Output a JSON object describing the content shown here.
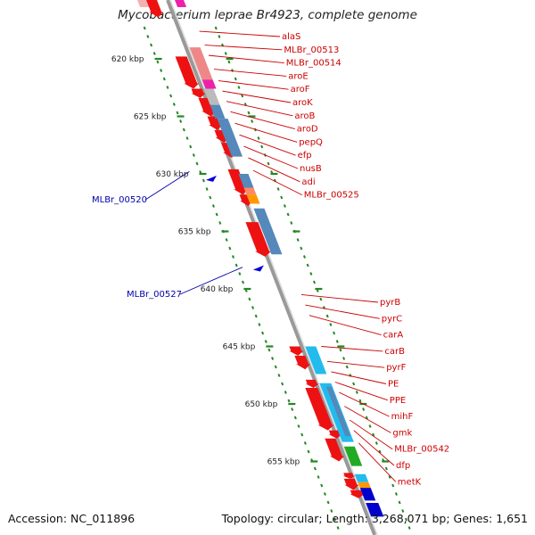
{
  "header": {
    "title": "Mycobacterium leprae Br4923, complete genome"
  },
  "footer": {
    "accession": "Accession: NC_011896",
    "summary": "Topology: circular; Length: 3,268,071 bp; Genes: 1,651"
  },
  "scale": {
    "ticks": [
      {
        "label": "620 kbp",
        "pos": 620
      },
      {
        "label": "625 kbp",
        "pos": 625
      },
      {
        "label": "630 kbp",
        "pos": 630
      },
      {
        "label": "635 kbp",
        "pos": 635
      },
      {
        "label": "640 kbp",
        "pos": 640
      },
      {
        "label": "645 kbp",
        "pos": 645
      },
      {
        "label": "650 kbp",
        "pos": 650
      },
      {
        "label": "655 kbp",
        "pos": 655
      }
    ]
  },
  "colors": {
    "cds": "#ee1111",
    "axis": "#999999",
    "scale": "#228822",
    "label_red": "#cc0000",
    "label_blue": "#0000aa",
    "pink": "#ee8888",
    "magenta": "#ee22aa",
    "steel": "#5588bb",
    "grey": "#bbbbbb",
    "orange": "#ff9900",
    "salmon": "#ff8866",
    "cyan": "#22bbee",
    "green": "#22aa22",
    "navy": "#0000cc",
    "pos_strand": "#0000dd"
  },
  "genes_right": [
    {
      "name": "alaS",
      "pos": 617.6
    },
    {
      "name": "MLBr_00513",
      "pos": 618.8
    },
    {
      "name": "MLBr_00514",
      "pos": 619.7
    },
    {
      "name": "aroE",
      "pos": 620.9
    },
    {
      "name": "aroF",
      "pos": 621.9
    },
    {
      "name": "aroK",
      "pos": 622.8
    },
    {
      "name": "aroB",
      "pos": 623.7
    },
    {
      "name": "aroD",
      "pos": 624.6
    },
    {
      "name": "pepQ",
      "pos": 625.6
    },
    {
      "name": "efp",
      "pos": 626.6
    },
    {
      "name": "nusB",
      "pos": 627.6
    },
    {
      "name": "adi",
      "pos": 628.6
    },
    {
      "name": "MLBr_00525",
      "pos": 629.7
    },
    {
      "name": "pyrB",
      "pos": 640.5
    },
    {
      "name": "pyrC",
      "pos": 641.4
    },
    {
      "name": "carA",
      "pos": 642.3
    },
    {
      "name": "carB",
      "pos": 645.0
    },
    {
      "name": "pyrF",
      "pos": 646.3
    },
    {
      "name": "PE",
      "pos": 647.2
    },
    {
      "name": "PPE",
      "pos": 648.1
    },
    {
      "name": "mihF",
      "pos": 649.0
    },
    {
      "name": "gmk",
      "pos": 650.2
    },
    {
      "name": "MLBr_00542",
      "pos": 651.4
    },
    {
      "name": "dfp",
      "pos": 652.3
    },
    {
      "name": "metK",
      "pos": 653.4
    }
  ],
  "genes_left": [
    {
      "name": "MLBr_00520",
      "pos": 630.8
    },
    {
      "name": "MLBr_00527",
      "pos": 638.5
    }
  ]
}
